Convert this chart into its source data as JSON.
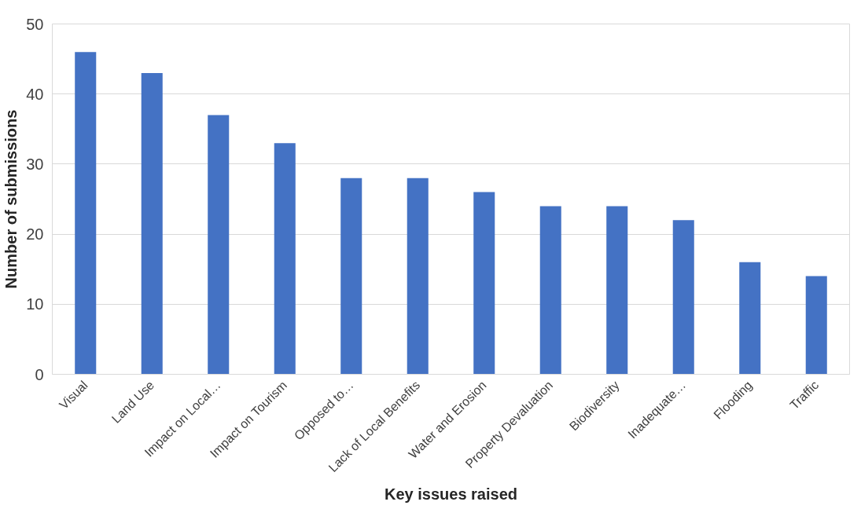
{
  "chart_data": {
    "type": "bar",
    "xlabel": "Key issues raised",
    "ylabel": "Number of submissions",
    "categories": [
      "Visual",
      "Land Use",
      "Impact on Local…",
      "Impact on Tourism",
      "Opposed to…",
      "Lack of Local Benefits",
      "Water and Erosion",
      "Property Devaluation",
      "Biodiversity",
      "Inadequate…",
      "Flooding",
      "Traffic"
    ],
    "values": [
      46,
      43,
      37,
      33,
      28,
      28,
      26,
      24,
      24,
      22,
      16,
      14
    ],
    "color": "#4472c4",
    "ylim": [
      0,
      50
    ],
    "yticks": [
      0,
      10,
      20,
      30,
      40,
      50
    ],
    "grid": "y"
  }
}
